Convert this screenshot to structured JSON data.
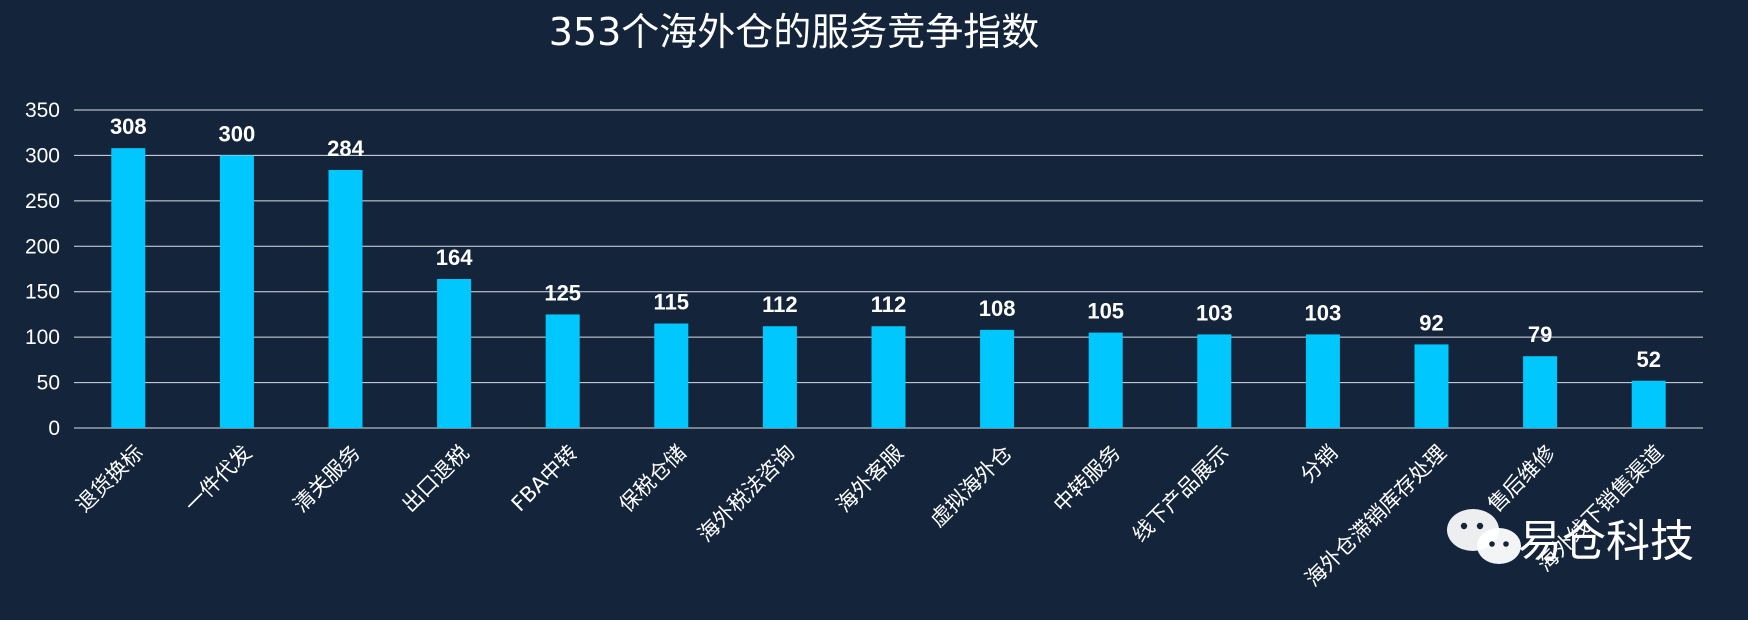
{
  "colors": {
    "background": "#14253b",
    "bar": "#00c8ff",
    "text": "#ffffff",
    "grid": "#d9dee6"
  },
  "chart_data": {
    "type": "bar",
    "title": "353个海外仓的服务竞争指数",
    "xlabel": "",
    "ylabel": "",
    "ylim": [
      0,
      350
    ],
    "yticks": [
      0,
      50,
      100,
      150,
      200,
      250,
      300,
      350
    ],
    "grid": true,
    "legend": "none",
    "categories": [
      "退货换标",
      "一件代发",
      "清关服务",
      "出口退税",
      "FBA中转",
      "保税仓储",
      "海外税法咨询",
      "海外客服",
      "虚拟海外仓",
      "中转服务",
      "线下产品展示",
      "分销",
      "海外仓滞销库存处理",
      "售后维修",
      "海外线下销售渠道"
    ],
    "values": [
      308,
      300,
      284,
      164,
      125,
      115,
      112,
      112,
      108,
      105,
      103,
      103,
      92,
      79,
      52
    ],
    "data_labels": true
  },
  "watermark": {
    "text": "易仓科技",
    "icon": "wechat-icon"
  }
}
